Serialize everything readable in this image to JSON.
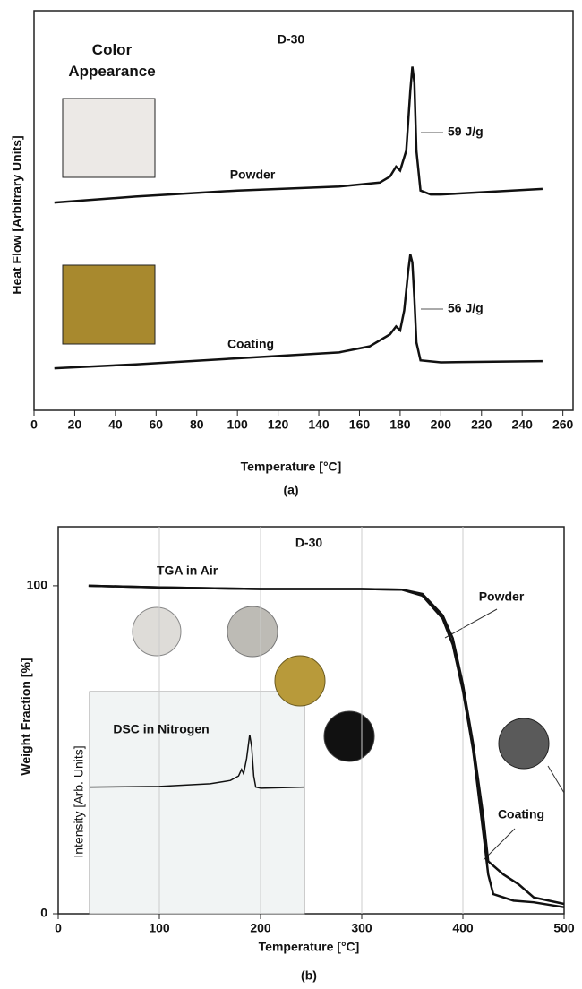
{
  "chart_data": [
    {
      "type": "line",
      "title": "D-30",
      "caption": "(a)",
      "xlabel": "Temperature [°C]",
      "ylabel": "Heat Flow [Arbitrary Units]",
      "annotations": [
        "Color Appearance",
        "59 J/g",
        "56 J/g"
      ],
      "xlim": [
        0,
        265
      ],
      "ylim": [
        0,
        100
      ],
      "xticks": [
        0,
        20,
        40,
        60,
        80,
        100,
        120,
        140,
        160,
        180,
        200,
        220,
        240,
        260
      ],
      "yticks": [],
      "grid": false,
      "series": [
        {
          "name": "Powder",
          "color": "#111111",
          "x": [
            10,
            50,
            100,
            150,
            170,
            175,
            178,
            180,
            183,
            185,
            186,
            187,
            188,
            190,
            195,
            200,
            250
          ],
          "values": [
            52,
            53.5,
            55,
            56,
            57,
            58.5,
            61,
            60,
            65,
            80,
            86,
            82,
            65,
            55,
            54,
            54,
            55.4
          ]
        },
        {
          "name": "Coating",
          "color": "#111111",
          "x": [
            10,
            50,
            100,
            150,
            165,
            175,
            178,
            180,
            182,
            184,
            185,
            186,
            187,
            188,
            190,
            200,
            250
          ],
          "values": [
            10.5,
            11.5,
            13,
            14.5,
            16,
            19,
            21,
            20,
            25,
            35,
            39,
            37,
            28,
            17,
            12.5,
            12,
            12.3
          ]
        }
      ]
    },
    {
      "type": "line",
      "title": "D-30",
      "caption": "(b)",
      "xlabel": "Temperature [°C]",
      "ylabel": "Weight Fraction [%]",
      "annotations": [
        "TGA in Air"
      ],
      "xlim": [
        0,
        500
      ],
      "ylim": [
        0,
        118
      ],
      "xticks": [
        0,
        100,
        200,
        300,
        400,
        500
      ],
      "yticks": [
        0,
        100
      ],
      "grid": true,
      "series": [
        {
          "name": "Powder",
          "color": "#111111",
          "x": [
            30,
            100,
            200,
            300,
            340,
            360,
            380,
            390,
            400,
            410,
            420,
            425,
            430,
            450,
            470,
            500
          ],
          "values": [
            100,
            99.5,
            99,
            99,
            98.8,
            97,
            90,
            82,
            68,
            50,
            25,
            12,
            6,
            4,
            3.5,
            2
          ]
        },
        {
          "name": "Coating",
          "color": "#111111",
          "x": [
            30,
            100,
            200,
            300,
            340,
            360,
            380,
            390,
            400,
            410,
            420,
            425,
            440,
            455,
            470,
            500
          ],
          "values": [
            100,
            99.5,
            99,
            99,
            98.8,
            97.5,
            91,
            84,
            70,
            52,
            30,
            16,
            12,
            9,
            5,
            3
          ]
        }
      ]
    },
    {
      "type": "line",
      "title": "DSC in Nitrogen",
      "ylabel": "Intensity [Arb. Units]",
      "xlim": [
        31,
        243
      ],
      "ylim": [
        0,
        100
      ],
      "series": [
        {
          "color": "#111111",
          "x": [
            31,
            100,
            150,
            170,
            178,
            181,
            183,
            186,
            189,
            191,
            193,
            195,
            200,
            243
          ],
          "values": [
            57,
            57.3,
            58.5,
            60,
            62,
            65,
            63,
            70,
            80.6,
            75,
            62,
            57,
            56.5,
            57
          ]
        }
      ]
    }
  ]
}
